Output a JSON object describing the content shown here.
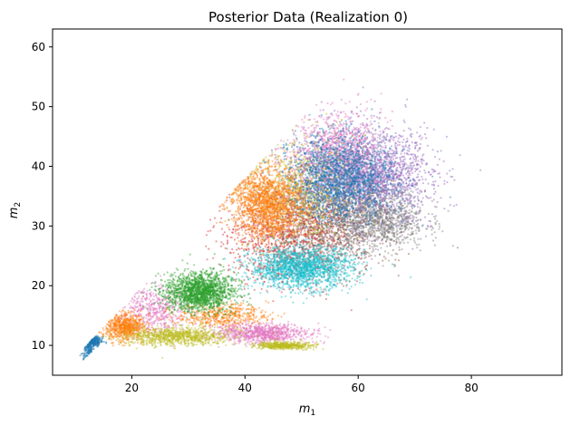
{
  "chart_data": {
    "type": "scatter",
    "title": "Posterior Data (Realization 0)",
    "xlabel": "m",
    "xlabel_sub": "1",
    "ylabel": "m",
    "ylabel_sub": "2",
    "xlim": [
      6,
      96
    ],
    "ylim": [
      5,
      63
    ],
    "x_ticks": [
      {
        "value": 20,
        "label": "20"
      },
      {
        "value": 40,
        "label": "40"
      },
      {
        "value": 60,
        "label": "60"
      },
      {
        "value": 80,
        "label": "80"
      }
    ],
    "y_ticks": [
      {
        "value": 10,
        "label": "10"
      },
      {
        "value": 20,
        "label": "20"
      },
      {
        "value": 30,
        "label": "30"
      },
      {
        "value": 40,
        "label": "40"
      },
      {
        "value": 50,
        "label": "50"
      },
      {
        "value": 60,
        "label": "60"
      }
    ],
    "grid": false,
    "legend": "none",
    "series": [
      {
        "color": "#9467bd",
        "center": [
          62,
          38
        ],
        "spread": [
          11,
          8
        ],
        "count": 2200
      },
      {
        "color": "#8c564b",
        "center": [
          54,
          30
        ],
        "spread": [
          11,
          8
        ],
        "count": 1600
      },
      {
        "color": "#e377c2",
        "center": [
          56,
          42
        ],
        "spread": [
          8,
          7
        ],
        "count": 1100
      },
      {
        "color": "#7f7f7f",
        "center": [
          64,
          31
        ],
        "spread": [
          8,
          5
        ],
        "count": 900
      },
      {
        "color": "#d62728",
        "center": [
          46,
          28
        ],
        "spread": [
          10,
          8
        ],
        "count": 900
      },
      {
        "color": "#bcbd22",
        "center": [
          50,
          36
        ],
        "spread": [
          9,
          9
        ],
        "count": 700
      },
      {
        "color": "#1f77b4",
        "center": [
          57,
          38
        ],
        "spread": [
          9,
          7
        ],
        "count": 1900
      },
      {
        "color": "#ff7f0e",
        "center": [
          44,
          34
        ],
        "spread": [
          6,
          6
        ],
        "count": 1600
      },
      {
        "color": "#17becf",
        "center": [
          50,
          23
        ],
        "spread": [
          9,
          3.5
        ],
        "count": 1700
      },
      {
        "color": "#e377c2",
        "center": [
          24,
          16
        ],
        "spread": [
          6,
          4
        ],
        "count": 500
      },
      {
        "color": "#ff7f0e",
        "center": [
          19,
          13
        ],
        "spread": [
          3.5,
          2.2
        ],
        "count": 700
      },
      {
        "color": "#ff7f0e",
        "center": [
          36,
          15
        ],
        "spread": [
          8,
          2
        ],
        "count": 500
      },
      {
        "color": "#2ca02c",
        "center": [
          32,
          19
        ],
        "spread": [
          6,
          3.3
        ],
        "count": 1700
      },
      {
        "color": "#e377c2",
        "center": [
          43,
          12
        ],
        "spread": [
          8,
          1.6
        ],
        "count": 900
      },
      {
        "color": "#bcbd22",
        "center": [
          28,
          11.5
        ],
        "spread": [
          9,
          1.5
        ],
        "count": 900
      },
      {
        "color": "#1f77b4",
        "center": [
          13,
          10.8
        ],
        "spread": [
          1.5,
          0.9
        ],
        "count": 350
      },
      {
        "color": "#bcbd22",
        "center": [
          47,
          10
        ],
        "spread": [
          5,
          0.6
        ],
        "count": 500
      }
    ]
  }
}
